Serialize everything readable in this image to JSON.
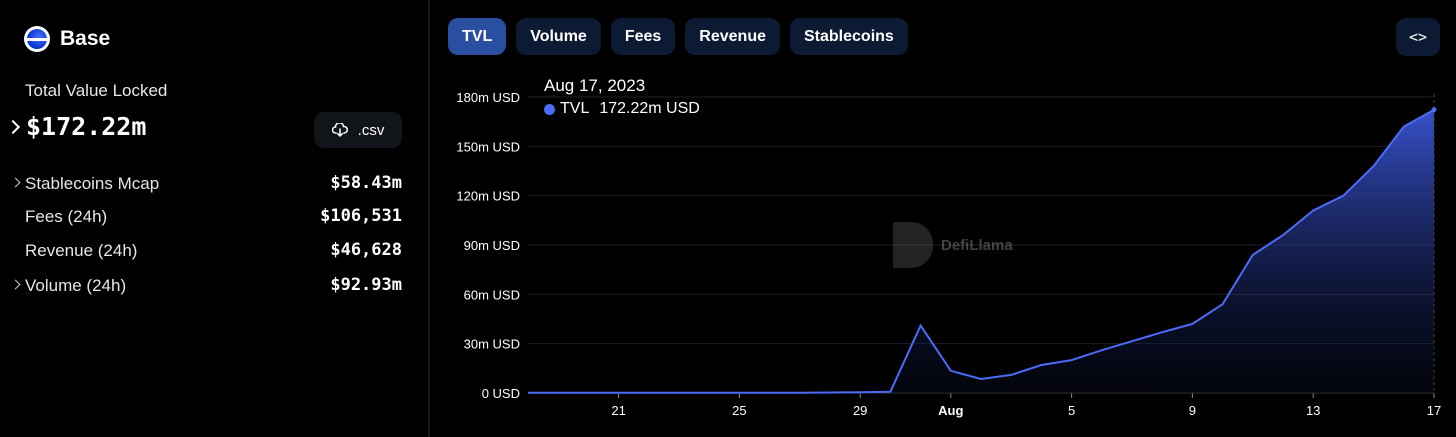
{
  "chain": {
    "name": "Base",
    "logo_icon": "base-logo-icon"
  },
  "summary": {
    "tvl_label": "Total Value Locked",
    "tvl_value": "$172.22m",
    "csv_label": ".csv"
  },
  "stats": [
    {
      "label": "Stablecoins Mcap",
      "value": "$58.43m",
      "expandable": true
    },
    {
      "label": "Fees (24h)",
      "value": "$106,531",
      "expandable": false
    },
    {
      "label": "Revenue (24h)",
      "value": "$46,628",
      "expandable": false
    },
    {
      "label": "Volume (24h)",
      "value": "$92.93m",
      "expandable": true
    }
  ],
  "tabs": [
    {
      "label": "TVL",
      "active": true
    },
    {
      "label": "Volume",
      "active": false
    },
    {
      "label": "Fees",
      "active": false
    },
    {
      "label": "Revenue",
      "active": false
    },
    {
      "label": "Stablecoins",
      "active": false
    }
  ],
  "embed_label": "<>",
  "tooltip": {
    "date": "Aug 17, 2023",
    "series": "TVL",
    "value": "172.22m USD"
  },
  "watermark": "DefiLlama",
  "colors": {
    "line": "#4a6cf7",
    "active_tab": "#2a4ea0",
    "tab": "#0c1a33"
  },
  "chart_data": {
    "type": "area",
    "x": [
      "Jul 18",
      "Jul 19",
      "Jul 20",
      "Jul 21",
      "Jul 22",
      "Jul 23",
      "Jul 24",
      "Jul 25",
      "Jul 26",
      "Jul 27",
      "Jul 28",
      "Jul 29",
      "Jul 30",
      "Jul 31",
      "Aug 1",
      "Aug 2",
      "Aug 3",
      "Aug 4",
      "Aug 5",
      "Aug 6",
      "Aug 7",
      "Aug 8",
      "Aug 9",
      "Aug 10",
      "Aug 11",
      "Aug 12",
      "Aug 13",
      "Aug 14",
      "Aug 15",
      "Aug 16",
      "Aug 17"
    ],
    "series": [
      {
        "name": "TVL",
        "values": [
          0.1,
          0.1,
          0.1,
          0.1,
          0.1,
          0.1,
          0.1,
          0.2,
          0.2,
          0.2,
          0.3,
          0.5,
          0.8,
          41,
          13.5,
          8.5,
          11,
          17,
          20,
          26,
          31.5,
          37,
          42,
          54,
          84,
          96,
          111,
          120,
          138,
          162,
          172.22
        ]
      }
    ],
    "x_ticks": [
      {
        "index": 3,
        "label": "21"
      },
      {
        "index": 7,
        "label": "25"
      },
      {
        "index": 11,
        "label": "29"
      },
      {
        "index": 14,
        "label": "Aug"
      },
      {
        "index": 18,
        "label": "5"
      },
      {
        "index": 22,
        "label": "9"
      },
      {
        "index": 26,
        "label": "13"
      },
      {
        "index": 30,
        "label": "17"
      }
    ],
    "y_ticks": [
      "0 USD",
      "30m USD",
      "60m USD",
      "90m USD",
      "120m USD",
      "150m USD",
      "180m USD"
    ],
    "ylim": [
      0,
      180
    ],
    "grid": true
  }
}
